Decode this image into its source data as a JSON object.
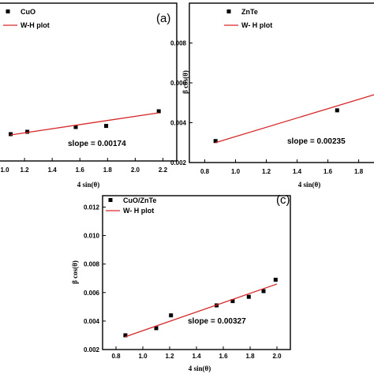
{
  "chart_data": [
    {
      "type": "scatter",
      "panel_label": "(a)",
      "xlabel": "4 sin(θ)",
      "ylabel": "",
      "xlim": [
        1.0,
        2.3
      ],
      "ylim": [
        0.0,
        1.0
      ],
      "x_ticks": [
        "1.2",
        "1.4",
        "1.6",
        "1.8",
        "2.0",
        "2.2"
      ],
      "partial_tick_label": "1.0",
      "legend": [
        "CuO",
        "W-H plot"
      ],
      "annotation": "slope = 0.00174",
      "series": [
        {
          "name": "CuO",
          "marker": "square",
          "color": "#000000",
          "x": [
            1.1,
            1.22,
            1.57,
            1.79,
            2.17
          ],
          "y": [
            0.17,
            0.185,
            0.215,
            0.222,
            0.315
          ]
        },
        {
          "name": "W-H plot",
          "mode": "line",
          "color": "#d62728",
          "x": [
            1.1,
            2.17
          ],
          "y": [
            0.165,
            0.305
          ]
        }
      ]
    },
    {
      "type": "scatter",
      "panel_label": "",
      "xlabel": "4 sin(θ)",
      "ylabel": "β cos(θ)",
      "xlim": [
        0.7,
        1.92
      ],
      "ylim": [
        0.002,
        0.01
      ],
      "x_ticks": [
        "0.8",
        "1.0",
        "1.2",
        "1.4",
        "1.6",
        "1.8"
      ],
      "y_ticks": [
        "0.002",
        "0.004",
        "0.006",
        "0.008"
      ],
      "legend": [
        "ZnTe",
        "W- H plot"
      ],
      "annotation": "slope = 0.00235",
      "series": [
        {
          "name": "ZnTe",
          "marker": "square",
          "color": "#000000",
          "x": [
            0.87,
            1.66
          ],
          "y": [
            0.00308,
            0.00462
          ]
        },
        {
          "name": "W- H plot",
          "mode": "line",
          "color": "#d62728",
          "x": [
            0.87,
            1.92
          ],
          "y": [
            0.003,
            0.00545
          ]
        }
      ]
    },
    {
      "type": "scatter",
      "panel_label": "(c)",
      "xlabel": "4 sin(θ)",
      "ylabel": "β cos(θ)",
      "xlim": [
        0.7,
        2.1
      ],
      "ylim": [
        0.002,
        0.0128
      ],
      "x_ticks": [
        "0.8",
        "1.0",
        "1.2",
        "1.4",
        "1.6",
        "1.8",
        "2.0"
      ],
      "y_ticks": [
        "0.002",
        "0.004",
        "0.006",
        "0.008",
        "0.010",
        "0.012"
      ],
      "legend": [
        "CuO/ZnTe",
        "W- H plot"
      ],
      "annotation": "slope = 0.00327",
      "series": [
        {
          "name": "CuO/ZnTe",
          "marker": "square",
          "color": "#000000",
          "x": [
            0.87,
            1.1,
            1.21,
            1.55,
            1.67,
            1.79,
            1.9,
            1.99
          ],
          "y": [
            0.003,
            0.0035,
            0.0044,
            0.0051,
            0.0054,
            0.0057,
            0.0061,
            0.0069
          ]
        },
        {
          "name": "W- H plot",
          "mode": "line",
          "color": "#d62728",
          "x": [
            0.87,
            2.0
          ],
          "y": [
            0.0029,
            0.0066
          ]
        }
      ]
    }
  ]
}
